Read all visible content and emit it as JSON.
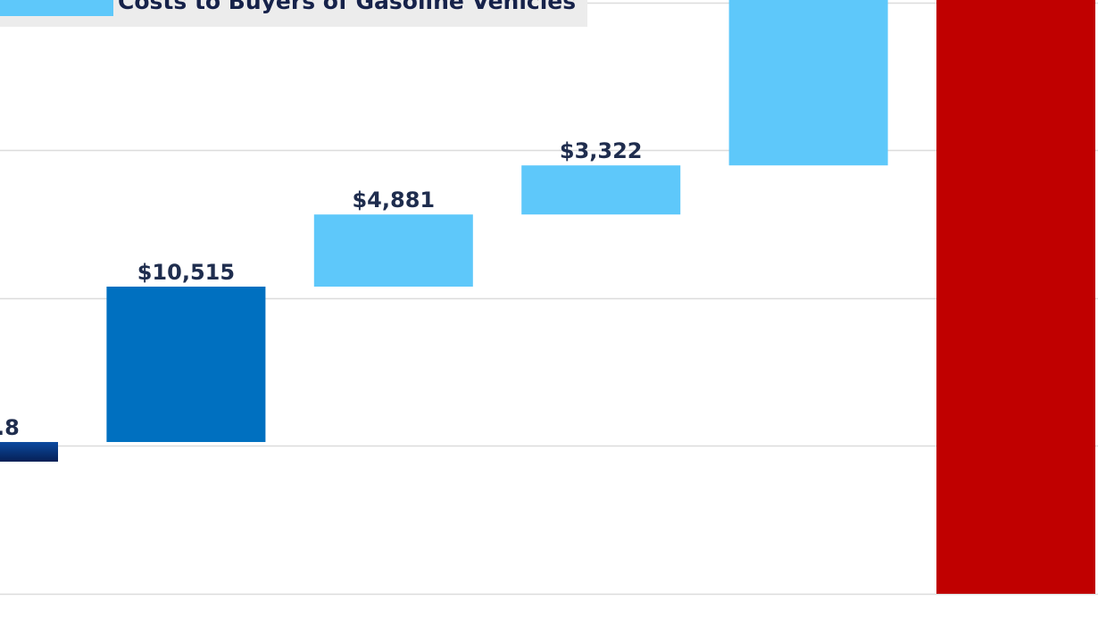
{
  "chart_data": {
    "type": "bar",
    "subtype": "waterfall",
    "title": "",
    "legend": {
      "position": "top-left",
      "entries": [
        {
          "label": "Costs to Buyers of Gasoline Vehicles",
          "color": "#5ec8fa"
        }
      ]
    },
    "ylim": [
      0,
      40180
    ],
    "grid": true,
    "gridlines": [
      0,
      10000,
      20000,
      30000,
      40000
    ],
    "bars": [
      {
        "label": ".8",
        "base": 8940,
        "value": 1330,
        "color": "#0a2d6e",
        "gradient_to": "#0b4aa0"
      },
      {
        "label": "$10,515",
        "base": 10270,
        "value": 10515,
        "color": "#0070c0"
      },
      {
        "label": "$4,881",
        "base": 20785,
        "value": 4881,
        "color": "#5ec8fa"
      },
      {
        "label": "$3,322",
        "base": 25666,
        "value": 3322,
        "color": "#5ec8fa"
      },
      {
        "label": null,
        "base": 28988,
        "value": null,
        "color": "#5ec8fa"
      },
      {
        "label": null,
        "base": 0,
        "value": null,
        "color": "#c00000"
      }
    ]
  }
}
